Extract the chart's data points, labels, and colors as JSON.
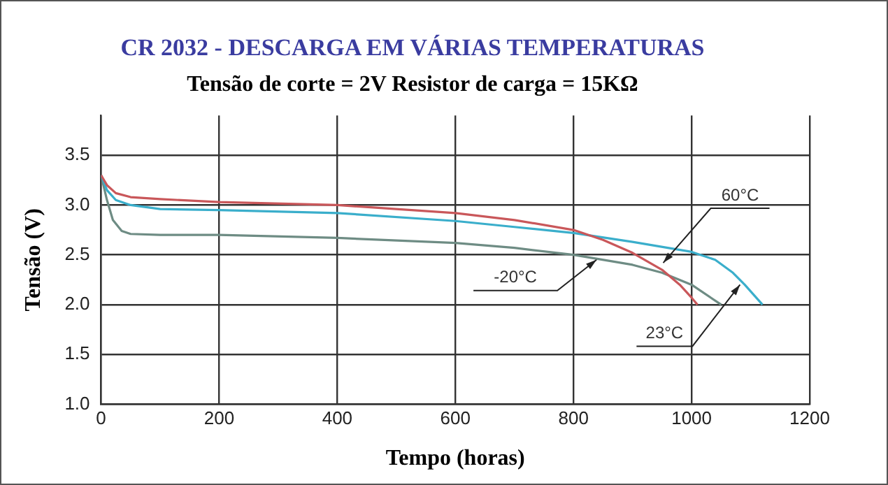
{
  "chart_data": {
    "type": "line",
    "title": "CR 2032 - DESCARGA EM VÁRIAS TEMPERATURAS",
    "subtitle": "Tensão de corte = 2V Resistor de carga = 15KΩ",
    "xlabel": "Tempo (horas)",
    "ylabel": "Tensão (V)",
    "xlim": [
      0,
      1200
    ],
    "xticks": [
      0,
      200,
      400,
      600,
      800,
      1000,
      1200
    ],
    "ylim": [
      1,
      3.9
    ],
    "yticks": [
      {
        "value": 1,
        "label": "1.0"
      },
      1.5,
      {
        "value": 2,
        "label": "2.0"
      },
      2.5,
      {
        "value": 3,
        "label": "3.0"
      },
      3.5
    ],
    "grid": true,
    "legend": false,
    "marker": "none",
    "line_style": "solid",
    "series": [
      {
        "color": "#c9575a",
        "x": [
          0,
          10,
          25,
          50,
          100,
          200,
          400,
          600,
          700,
          800,
          850,
          900,
          950,
          980,
          1000,
          1010
        ],
        "values": [
          3.3,
          3.2,
          3.12,
          3.08,
          3.06,
          3.03,
          3.0,
          2.92,
          2.85,
          2.75,
          2.65,
          2.52,
          2.35,
          2.2,
          2.07,
          2.0
        ]
      },
      {
        "color": "#3aaecb",
        "x": [
          0,
          10,
          25,
          50,
          100,
          200,
          400,
          600,
          700,
          800,
          900,
          1000,
          1040,
          1070,
          1090,
          1120
        ],
        "values": [
          3.3,
          3.15,
          3.05,
          3.0,
          2.96,
          2.95,
          2.92,
          2.84,
          2.78,
          2.72,
          2.63,
          2.53,
          2.45,
          2.32,
          2.2,
          2.0
        ]
      },
      {
        "color": "#6e8c84",
        "x": [
          0,
          10,
          20,
          35,
          50,
          100,
          200,
          400,
          600,
          700,
          800,
          900,
          950,
          1000,
          1050
        ],
        "values": [
          3.3,
          3.05,
          2.85,
          2.74,
          2.71,
          2.7,
          2.7,
          2.67,
          2.62,
          2.57,
          2.5,
          2.4,
          2.32,
          2.2,
          2.0
        ]
      }
    ],
    "annotations": [
      {
        "text": "60°C",
        "x": 952,
        "y": 2.42
      },
      {
        "text": "-20°C",
        "x": 839,
        "y": 2.45
      },
      {
        "text": "23°C",
        "x": 1082,
        "y": 2.2
      }
    ]
  }
}
